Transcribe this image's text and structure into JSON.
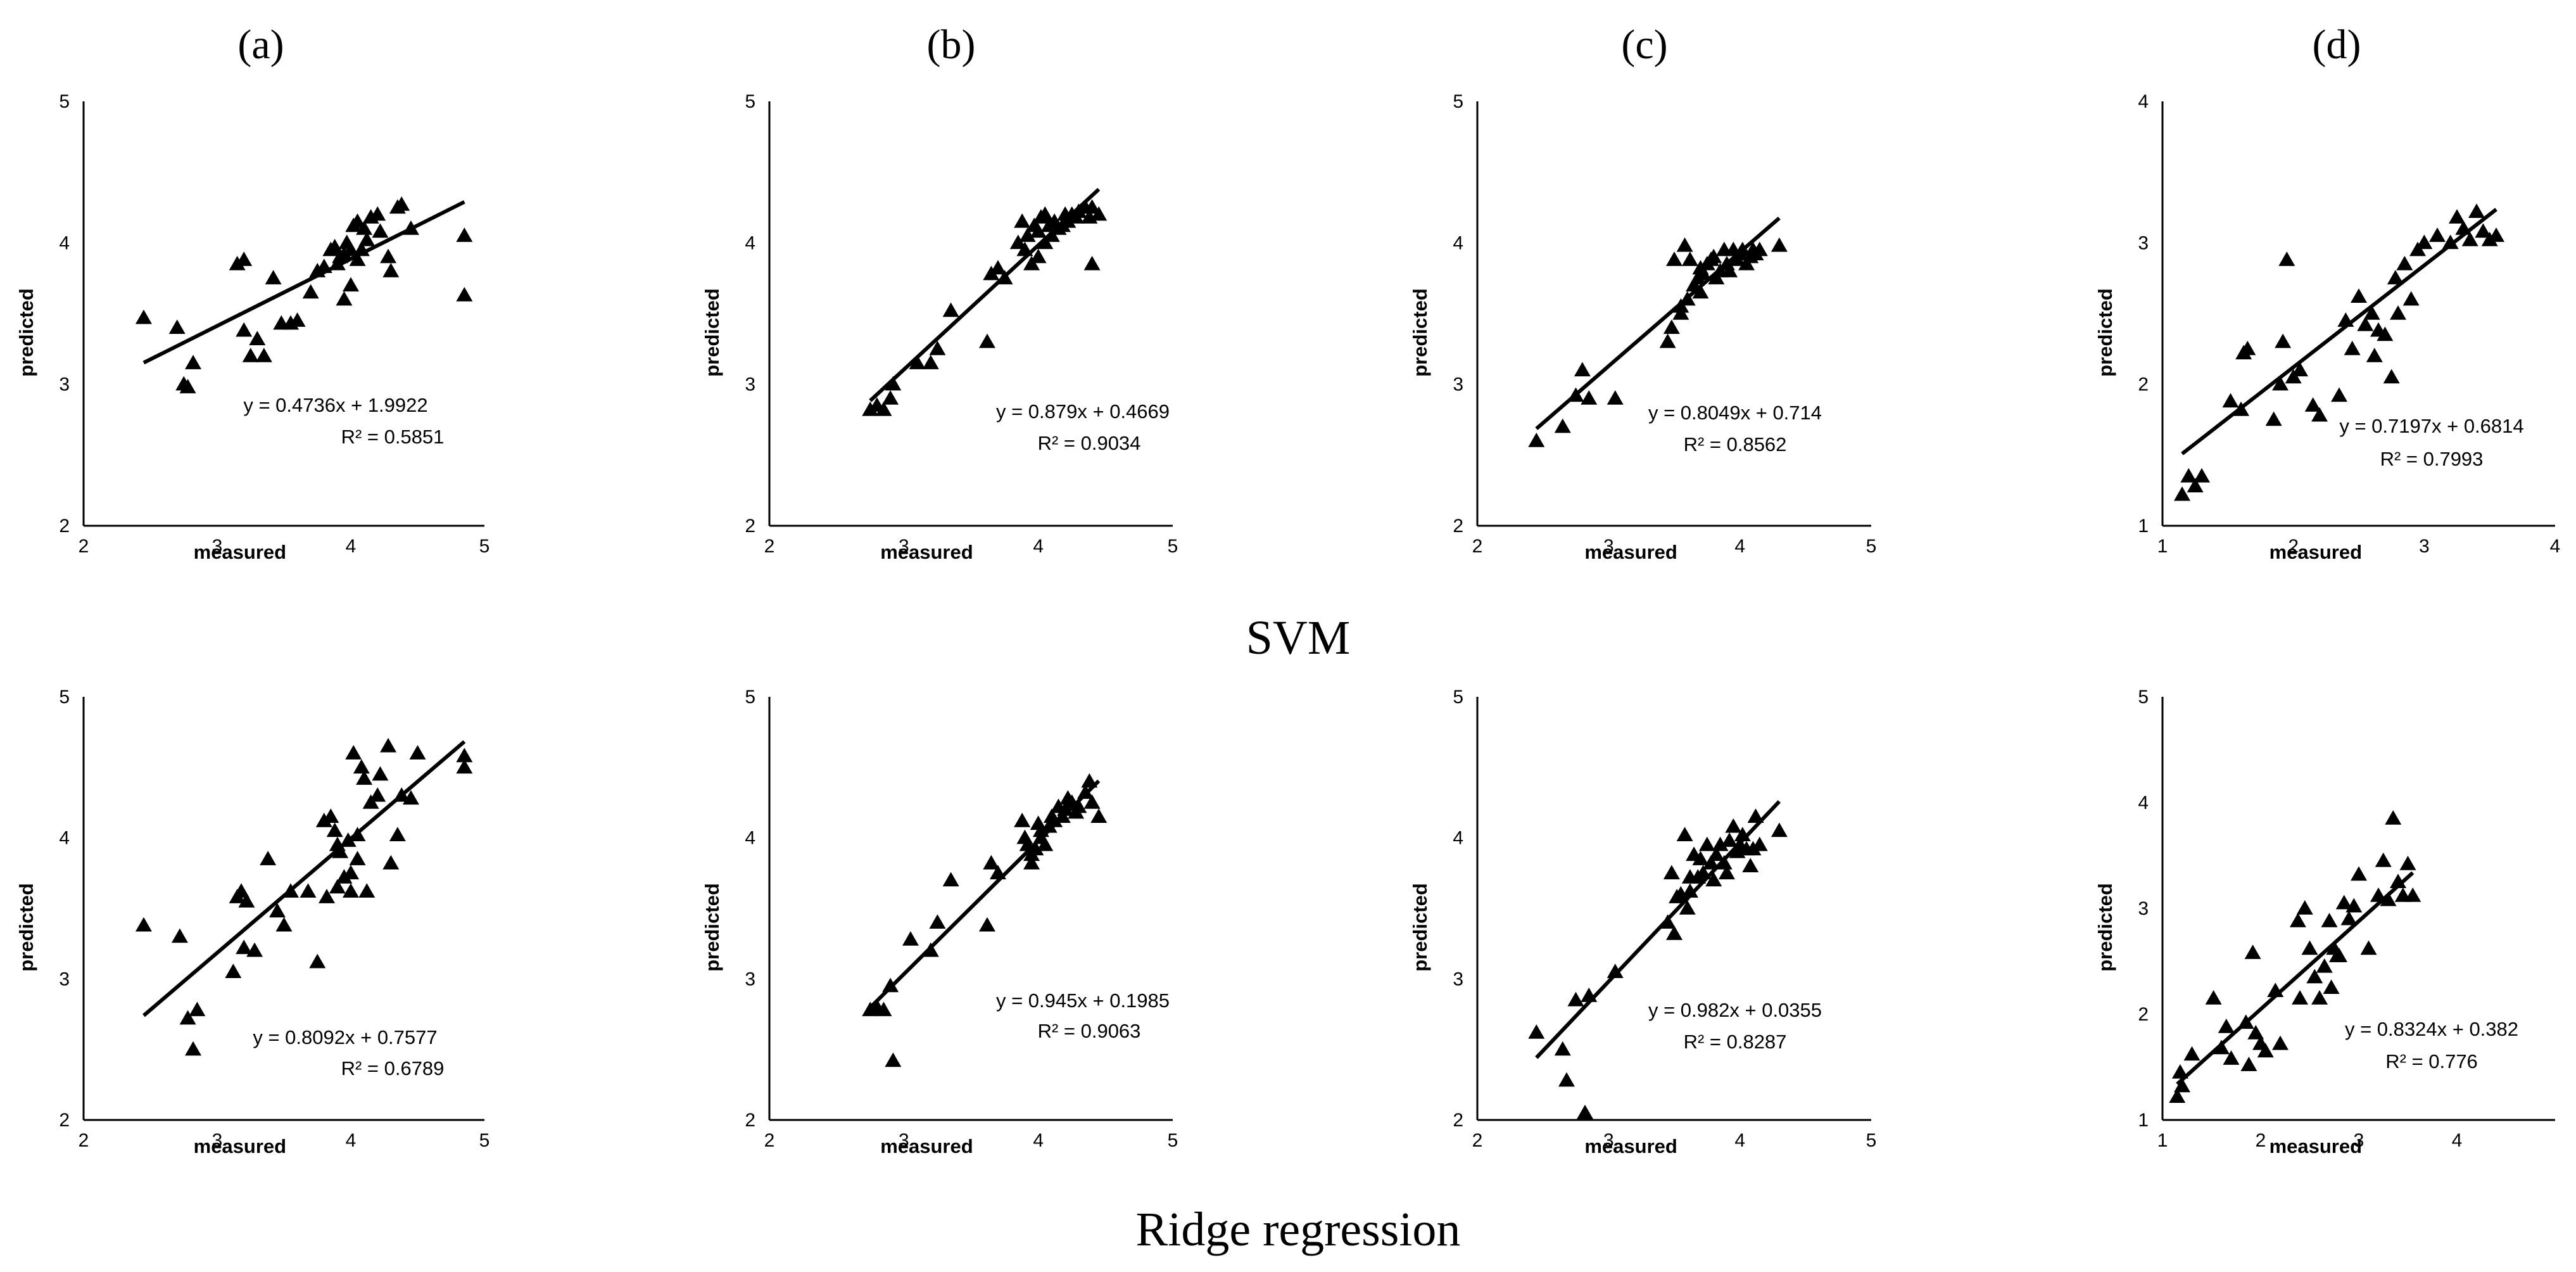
{
  "column_titles": [
    "(a)",
    "(b)",
    "(c)",
    "(d)"
  ],
  "row_titles": [
    "SVM",
    "Ridge regression"
  ],
  "chart_data": [
    {
      "type": "scatter",
      "title": "(a)",
      "row": "SVM",
      "xlabel": "measured",
      "ylabel": "predicted",
      "xlim": [
        2,
        5
      ],
      "ylim": [
        2,
        5
      ],
      "xticks": [
        "2",
        "3",
        "4",
        "5"
      ],
      "yticks": [
        "2",
        "3",
        "4",
        "5"
      ],
      "trend": {
        "slope": 0.4736,
        "intercept": 1.9922,
        "x_range": [
          2.45,
          4.85
        ]
      },
      "equation": "y = 0.4736x + 1.9922",
      "r2": "R² = 0.5851",
      "x": [
        2.45,
        2.7,
        2.75,
        2.78,
        2.82,
        3.15,
        3.2,
        3.25,
        3.2,
        3.3,
        3.35,
        3.42,
        3.48,
        3.55,
        3.6,
        3.7,
        3.75,
        3.8,
        3.85,
        3.88,
        3.9,
        3.92,
        3.95,
        3.95,
        3.97,
        4.0,
        4.0,
        4.02,
        4.05,
        4.05,
        4.08,
        4.1,
        4.12,
        4.15,
        4.2,
        4.22,
        4.28,
        4.3,
        4.35,
        4.38,
        4.45,
        4.85,
        4.85
      ],
      "y": [
        3.47,
        3.4,
        3.0,
        2.98,
        3.15,
        3.85,
        3.88,
        3.2,
        3.38,
        3.32,
        3.2,
        3.75,
        3.43,
        3.43,
        3.45,
        3.65,
        3.8,
        3.83,
        3.95,
        3.97,
        3.85,
        3.9,
        3.92,
        3.6,
        4.0,
        3.7,
        3.95,
        4.12,
        3.88,
        4.15,
        3.95,
        4.1,
        4.02,
        4.18,
        4.2,
        4.08,
        3.9,
        3.8,
        4.25,
        4.27,
        4.1,
        4.05,
        3.63
      ]
    },
    {
      "type": "scatter",
      "title": "(b)",
      "row": "SVM",
      "xlabel": "measured",
      "ylabel": "predicted",
      "xlim": [
        2,
        5
      ],
      "ylim": [
        2,
        5
      ],
      "xticks": [
        "2",
        "3",
        "4",
        "5"
      ],
      "yticks": [
        "2",
        "3",
        "4",
        "5"
      ],
      "trend": {
        "slope": 0.879,
        "intercept": 0.4669,
        "x_range": [
          2.75,
          4.45
        ]
      },
      "equation": "y = 0.879x + 0.4669",
      "r2": "R² = 0.9034",
      "x": [
        2.75,
        2.8,
        2.85,
        2.9,
        2.92,
        3.1,
        3.2,
        3.25,
        3.35,
        3.62,
        3.65,
        3.7,
        3.75,
        3.85,
        3.88,
        3.9,
        3.92,
        3.95,
        3.97,
        4.0,
        4.0,
        4.02,
        4.05,
        4.05,
        4.08,
        4.1,
        4.12,
        4.15,
        4.18,
        4.2,
        4.22,
        4.25,
        4.28,
        4.3,
        4.35,
        4.38,
        4.4,
        4.45,
        4.4
      ],
      "y": [
        2.82,
        2.85,
        2.82,
        2.9,
        3.0,
        3.15,
        3.15,
        3.25,
        3.52,
        3.3,
        3.78,
        3.82,
        3.75,
        4.0,
        4.15,
        3.95,
        4.05,
        3.85,
        4.12,
        4.08,
        3.9,
        4.18,
        4.2,
        4.0,
        4.12,
        4.05,
        4.15,
        4.1,
        4.12,
        4.2,
        4.15,
        4.2,
        4.18,
        4.22,
        4.25,
        4.18,
        3.85,
        4.2,
        4.25
      ]
    },
    {
      "type": "scatter",
      "title": "(c)",
      "row": "SVM",
      "xlabel": "measured",
      "ylabel": "predicted",
      "xlim": [
        2,
        5
      ],
      "ylim": [
        2,
        5
      ],
      "xticks": [
        "2",
        "3",
        "4",
        "5"
      ],
      "yticks": [
        "2",
        "3",
        "4",
        "5"
      ],
      "trend": {
        "slope": 0.8049,
        "intercept": 0.714,
        "x_range": [
          2.45,
          4.3
        ]
      },
      "equation": "y = 0.8049x + 0.714",
      "r2": "R² = 0.8562",
      "x": [
        2.45,
        2.65,
        2.75,
        2.8,
        2.85,
        3.05,
        3.45,
        3.48,
        3.5,
        3.55,
        3.58,
        3.6,
        3.62,
        3.65,
        3.68,
        3.7,
        3.72,
        3.75,
        3.78,
        3.8,
        3.82,
        3.85,
        3.88,
        3.9,
        3.92,
        3.95,
        3.98,
        4.0,
        4.02,
        4.05,
        4.08,
        4.1,
        4.12,
        4.15,
        4.3,
        3.55,
        3.7
      ],
      "y": [
        2.6,
        2.7,
        2.92,
        3.1,
        2.9,
        2.9,
        3.3,
        3.4,
        3.88,
        3.55,
        3.98,
        3.6,
        3.88,
        3.7,
        3.75,
        3.82,
        3.78,
        3.85,
        3.88,
        3.9,
        3.75,
        3.8,
        3.95,
        3.85,
        3.8,
        3.95,
        3.88,
        3.92,
        3.95,
        3.85,
        3.9,
        3.95,
        3.92,
        3.95,
        3.98,
        3.5,
        3.65
      ]
    },
    {
      "type": "scatter",
      "title": "(d)",
      "row": "SVM",
      "xlabel": "measured",
      "ylabel": "predicted",
      "xlim": [
        1,
        4
      ],
      "ylim": [
        1,
        4
      ],
      "xticks": [
        "1",
        "2",
        "3",
        "4"
      ],
      "yticks": [
        "1",
        "2",
        "3",
        "4"
      ],
      "trend": {
        "slope": 0.7197,
        "intercept": 0.6814,
        "x_range": [
          1.15,
          3.55
        ]
      },
      "equation": "y = 0.7197x + 0.6814",
      "r2": "R² = 0.7993",
      "x": [
        1.15,
        1.2,
        1.25,
        1.3,
        1.52,
        1.6,
        1.62,
        1.65,
        1.85,
        1.9,
        1.92,
        1.95,
        2.0,
        2.05,
        2.15,
        2.2,
        2.35,
        2.4,
        2.45,
        2.5,
        2.55,
        2.6,
        2.62,
        2.65,
        2.7,
        2.75,
        2.78,
        2.8,
        2.85,
        2.9,
        2.95,
        3.0,
        3.1,
        3.2,
        3.25,
        3.3,
        3.35,
        3.4,
        3.45,
        3.5,
        3.55
      ],
      "y": [
        1.22,
        1.35,
        1.28,
        1.35,
        1.88,
        1.82,
        2.22,
        2.25,
        1.75,
        2.0,
        2.3,
        2.88,
        2.05,
        2.1,
        1.85,
        1.78,
        1.92,
        2.45,
        2.25,
        2.62,
        2.42,
        2.5,
        2.2,
        2.38,
        2.35,
        2.05,
        2.75,
        2.5,
        2.85,
        2.6,
        2.95,
        3.0,
        3.05,
        3.0,
        3.18,
        3.1,
        3.02,
        3.22,
        3.08,
        3.02,
        3.05
      ]
    },
    {
      "type": "scatter",
      "title": "(a)",
      "row": "Ridge regression",
      "xlabel": "measured",
      "ylabel": "predicted",
      "xlim": [
        2,
        5
      ],
      "ylim": [
        2,
        5
      ],
      "xticks": [
        "2",
        "3",
        "4",
        "5"
      ],
      "yticks": [
        "2",
        "3",
        "4",
        "5"
      ],
      "trend": {
        "slope": 0.8092,
        "intercept": 0.7577,
        "x_range": [
          2.45,
          4.85
        ]
      },
      "equation": "y = 0.8092x + 0.7577",
      "r2": "R² = 0.6789",
      "x": [
        2.45,
        2.72,
        2.78,
        2.82,
        2.85,
        3.12,
        3.15,
        3.18,
        3.2,
        3.22,
        3.28,
        3.38,
        3.45,
        3.5,
        3.55,
        3.68,
        3.75,
        3.8,
        3.82,
        3.85,
        3.88,
        3.9,
        3.92,
        3.95,
        3.98,
        4.0,
        4.02,
        4.05,
        4.05,
        4.08,
        4.1,
        4.12,
        4.15,
        4.2,
        4.22,
        4.28,
        4.3,
        4.35,
        4.38,
        4.45,
        4.5,
        4.85,
        4.85,
        4.0,
        3.9
      ],
      "y": [
        3.38,
        3.3,
        2.72,
        2.5,
        2.78,
        3.05,
        3.58,
        3.62,
        3.22,
        3.55,
        3.2,
        3.85,
        3.48,
        3.38,
        3.62,
        3.62,
        3.12,
        4.12,
        3.58,
        4.15,
        4.05,
        3.95,
        3.9,
        3.72,
        3.98,
        3.62,
        4.6,
        3.85,
        4.02,
        4.5,
        4.42,
        3.62,
        4.25,
        4.3,
        4.45,
        4.65,
        3.82,
        4.02,
        4.3,
        4.28,
        4.6,
        4.58,
        4.5,
        3.75,
        3.65
      ]
    },
    {
      "type": "scatter",
      "title": "(b)",
      "row": "Ridge regression",
      "xlabel": "measured",
      "ylabel": "predicted",
      "xlim": [
        2,
        5
      ],
      "ylim": [
        2,
        5
      ],
      "xticks": [
        "2",
        "3",
        "4",
        "5"
      ],
      "yticks": [
        "2",
        "3",
        "4",
        "5"
      ],
      "trend": {
        "slope": 0.945,
        "intercept": 0.1985,
        "x_range": [
          2.75,
          4.45
        ]
      },
      "equation": "y = 0.945x + 0.1985",
      "r2": "R² = 0.9063",
      "x": [
        2.75,
        2.8,
        2.85,
        2.9,
        2.92,
        3.05,
        3.2,
        3.25,
        3.35,
        3.62,
        3.65,
        3.7,
        3.88,
        3.9,
        3.92,
        3.95,
        3.98,
        4.0,
        4.02,
        4.05,
        4.08,
        4.1,
        4.12,
        4.15,
        4.18,
        4.2,
        4.22,
        4.25,
        4.28,
        4.3,
        4.35,
        4.38,
        4.4,
        4.45,
        3.95,
        4.02
      ],
      "y": [
        2.78,
        2.8,
        2.78,
        2.95,
        2.42,
        3.28,
        3.2,
        3.4,
        3.7,
        3.38,
        3.82,
        3.75,
        4.12,
        4.0,
        3.95,
        3.88,
        3.92,
        4.1,
        4.05,
        3.95,
        4.08,
        4.15,
        4.12,
        4.22,
        4.15,
        4.2,
        4.28,
        4.25,
        4.18,
        4.22,
        4.32,
        4.4,
        4.25,
        4.15,
        3.82,
        4.0
      ]
    },
    {
      "type": "scatter",
      "title": "(c)",
      "row": "Ridge regression",
      "xlabel": "measured",
      "ylabel": "predicted",
      "xlim": [
        2,
        5
      ],
      "ylim": [
        2,
        5
      ],
      "xticks": [
        "2",
        "3",
        "4",
        "5"
      ],
      "yticks": [
        "2",
        "3",
        "4",
        "5"
      ],
      "trend": {
        "slope": 0.982,
        "intercept": 0.0355,
        "x_range": [
          2.45,
          4.3
        ]
      },
      "equation": "y = 0.982x + 0.0355",
      "r2": "R² = 0.8287",
      "x": [
        2.45,
        2.65,
        2.68,
        2.75,
        2.82,
        2.85,
        3.05,
        3.45,
        3.48,
        3.5,
        3.55,
        3.58,
        3.6,
        3.62,
        3.65,
        3.68,
        3.7,
        3.72,
        3.75,
        3.78,
        3.8,
        3.82,
        3.85,
        3.88,
        3.9,
        3.92,
        3.95,
        3.98,
        4.0,
        4.02,
        4.05,
        4.08,
        4.1,
        4.12,
        4.15,
        4.3,
        3.52,
        3.62
      ],
      "y": [
        2.62,
        2.5,
        2.28,
        2.85,
        2.05,
        2.88,
        3.05,
        3.4,
        3.75,
        3.32,
        3.6,
        4.02,
        3.5,
        3.62,
        3.88,
        3.72,
        3.85,
        3.75,
        3.95,
        3.82,
        3.7,
        3.88,
        3.95,
        3.82,
        3.75,
        3.98,
        4.08,
        3.9,
        3.95,
        4.02,
        3.92,
        3.8,
        3.92,
        4.15,
        3.95,
        4.05,
        3.58,
        3.72
      ]
    },
    {
      "type": "scatter",
      "title": "(d)",
      "row": "Ridge regression",
      "xlabel": "measured",
      "ylabel": "predicted",
      "xlim": [
        1,
        5
      ],
      "ylim": [
        1,
        5
      ],
      "xticks": [
        "1",
        "2",
        "3",
        "4"
      ],
      "yticks": [
        "1",
        "2",
        "3",
        "4",
        "5"
      ],
      "trend": {
        "slope": 0.8324,
        "intercept": 0.382,
        "x_range": [
          1.15,
          3.55
        ]
      },
      "equation": "y = 0.8324x + 0.382",
      "r2": "R² = 0.776",
      "x": [
        1.15,
        1.18,
        1.2,
        1.3,
        1.52,
        1.6,
        1.65,
        1.7,
        1.85,
        1.88,
        1.92,
        1.95,
        2.0,
        2.05,
        2.15,
        2.2,
        2.38,
        2.4,
        2.45,
        2.5,
        2.55,
        2.6,
        2.65,
        2.7,
        2.72,
        2.75,
        2.78,
        2.8,
        2.85,
        2.9,
        2.95,
        3.0,
        3.1,
        3.2,
        3.25,
        3.3,
        3.35,
        3.4,
        3.45,
        3.5,
        3.55
      ],
      "y": [
        1.22,
        1.45,
        1.32,
        1.62,
        2.15,
        1.68,
        1.88,
        1.58,
        1.92,
        1.52,
        2.58,
        1.82,
        1.72,
        1.65,
        2.22,
        1.72,
        2.88,
        2.15,
        3.0,
        2.62,
        2.35,
        2.15,
        2.45,
        2.88,
        2.25,
        2.62,
        2.55,
        2.55,
        3.05,
        2.9,
        3.02,
        3.32,
        2.62,
        3.12,
        3.45,
        3.08,
        3.85,
        3.25,
        3.12,
        3.42,
        3.12
      ]
    }
  ]
}
